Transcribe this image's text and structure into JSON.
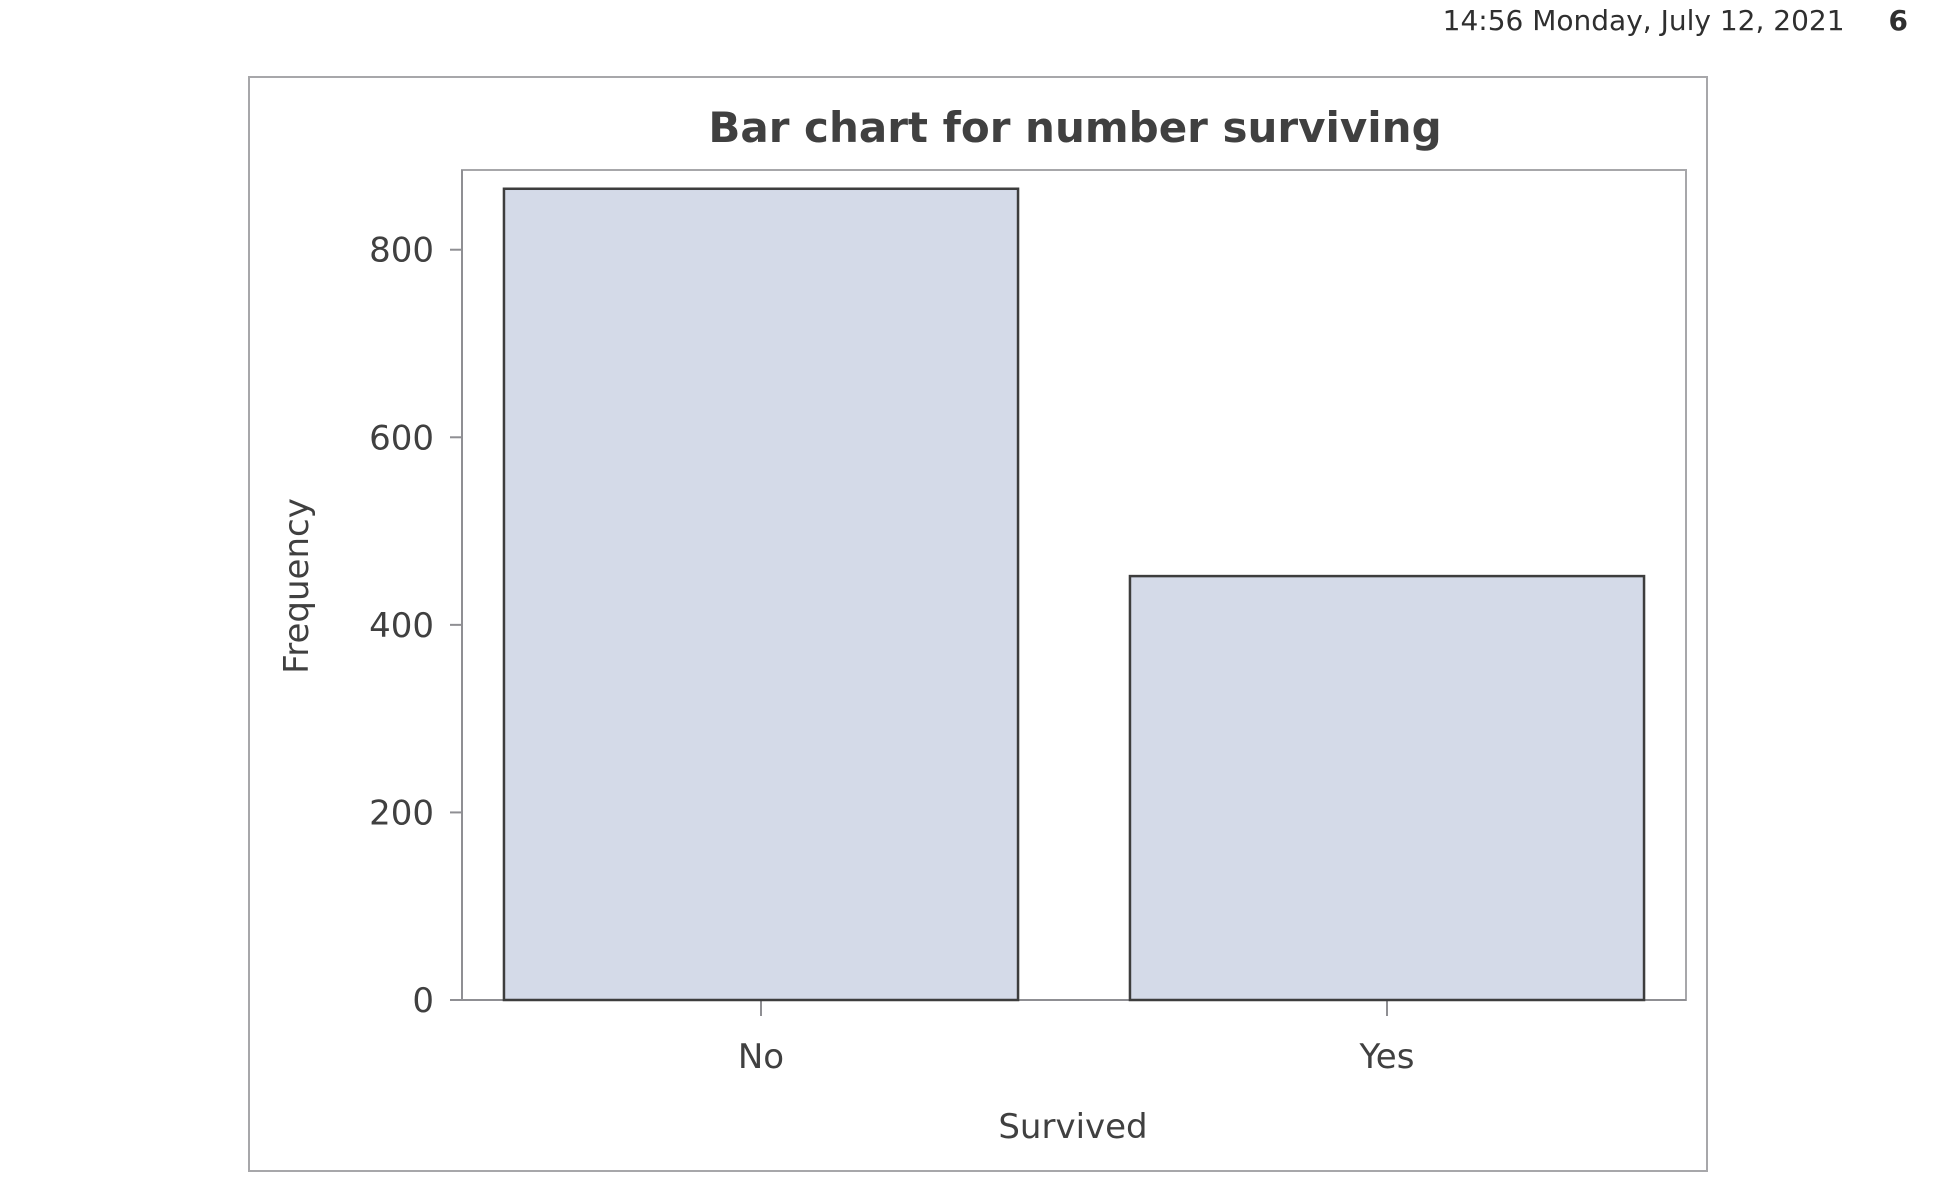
{
  "header": {
    "timestamp": "14:56 Monday, July 12, 2021",
    "page_number": "6"
  },
  "colors": {
    "bar_fill": "#d4dae8",
    "bar_stroke": "#3d3d3d",
    "frame": "#a7a7aa",
    "axis": "#8f8f93",
    "text": "#404040"
  },
  "chart_data": {
    "type": "bar",
    "title": "Bar chart for number surviving",
    "xlabel": "Survived",
    "ylabel": "Frequency",
    "categories": [
      "No",
      "Yes"
    ],
    "values": [
      865,
      452
    ],
    "ylim": [
      0,
      885
    ],
    "yticks": [
      0,
      200,
      400,
      600,
      800
    ],
    "grid": false,
    "legend": "none"
  }
}
